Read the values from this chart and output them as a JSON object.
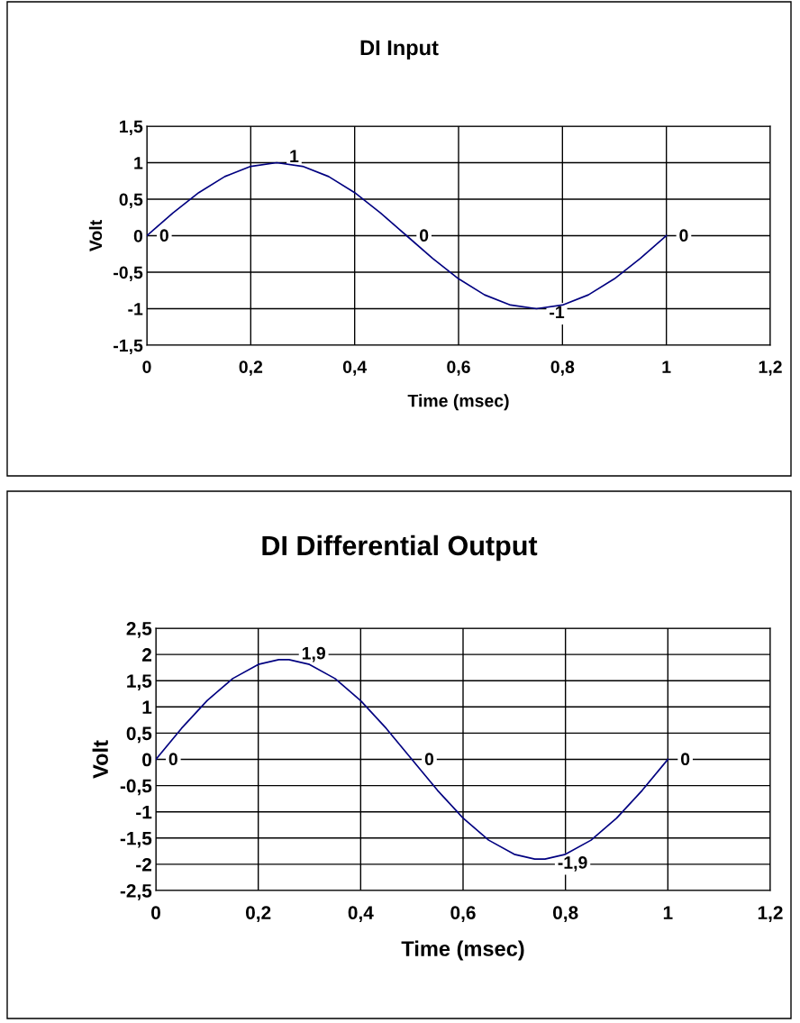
{
  "chart_data": [
    {
      "type": "line",
      "title": "DI Input",
      "xlabel": "Time (msec)",
      "ylabel": "Volt",
      "x": [
        0,
        0.05,
        0.1,
        0.15,
        0.2,
        0.25,
        0.3,
        0.35,
        0.4,
        0.45,
        0.5,
        0.55,
        0.6,
        0.65,
        0.7,
        0.75,
        0.8,
        0.85,
        0.9,
        0.95,
        1
      ],
      "series": [
        {
          "color": "#000080",
          "values": [
            0,
            0.31,
            0.59,
            0.81,
            0.95,
            1,
            0.95,
            0.81,
            0.59,
            0.31,
            0,
            -0.31,
            -0.59,
            -0.81,
            -0.95,
            -1,
            -0.95,
            -0.81,
            -0.59,
            -0.31,
            0
          ],
          "value_labels": [
            "0",
            null,
            null,
            null,
            null,
            "1",
            null,
            null,
            null,
            null,
            "0",
            null,
            null,
            null,
            null,
            "-1",
            null,
            null,
            null,
            null,
            "0"
          ]
        }
      ],
      "xlim": [
        0,
        1.2
      ],
      "xticks": [
        0,
        {
          "value": 0.2,
          "label": "0,2"
        },
        {
          "value": 0.4,
          "label": "0,4"
        },
        {
          "value": 0.6,
          "label": "0,6"
        },
        {
          "value": 0.8,
          "label": "0,8"
        },
        1,
        {
          "value": 1.2,
          "label": "1,2"
        }
      ],
      "ylim": [
        -1.5,
        1.5
      ],
      "yticks": [
        {
          "value": -1.5,
          "label": "-1,5"
        },
        -1,
        {
          "value": -0.5,
          "label": "-0,5"
        },
        0,
        {
          "value": 0.5,
          "label": "0,5"
        },
        1,
        {
          "value": 1.5,
          "label": "1,5"
        }
      ],
      "grid": true,
      "legend": false,
      "marker": "none",
      "line_style": "solid"
    },
    {
      "type": "line",
      "title": "DI Differential Output",
      "xlabel": "Time (msec)",
      "ylabel": "Volt",
      "x": [
        0,
        0.05,
        0.1,
        0.15,
        0.2,
        0.24,
        0.26,
        0.3,
        0.35,
        0.4,
        0.45,
        0.5,
        0.55,
        0.6,
        0.65,
        0.7,
        0.74,
        0.76,
        0.8,
        0.85,
        0.9,
        0.95,
        1
      ],
      "series": [
        {
          "color": "#000080",
          "values": [
            0,
            0.59,
            1.12,
            1.54,
            1.81,
            1.9,
            1.9,
            1.81,
            1.54,
            1.12,
            0.59,
            0,
            -0.59,
            -1.12,
            -1.54,
            -1.81,
            -1.9,
            -1.9,
            -1.81,
            -1.54,
            -1.12,
            -0.59,
            0
          ],
          "value_labels": [
            "0",
            null,
            null,
            null,
            null,
            null,
            "1,9",
            null,
            null,
            null,
            null,
            "0",
            null,
            null,
            null,
            null,
            null,
            "-1,9",
            null,
            null,
            null,
            null,
            "0"
          ]
        }
      ],
      "xlim": [
        0,
        1.2
      ],
      "xticks": [
        0,
        {
          "value": 0.2,
          "label": "0,2"
        },
        {
          "value": 0.4,
          "label": "0,4"
        },
        {
          "value": 0.6,
          "label": "0,6"
        },
        {
          "value": 0.8,
          "label": "0,8"
        },
        1,
        {
          "value": 1.2,
          "label": "1,2"
        }
      ],
      "ylim": [
        -2.5,
        2.5
      ],
      "yticks": [
        {
          "value": -2.5,
          "label": "-2,5"
        },
        -2,
        {
          "value": -1.5,
          "label": "-1,5"
        },
        -1,
        {
          "value": -0.5,
          "label": "-0,5"
        },
        0,
        {
          "value": 0.5,
          "label": "0,5"
        },
        1,
        {
          "value": 1.5,
          "label": "1,5"
        },
        2,
        {
          "value": 2.5,
          "label": "2,5"
        }
      ],
      "grid": true,
      "legend": false,
      "marker": "none",
      "line_style": "solid"
    }
  ]
}
